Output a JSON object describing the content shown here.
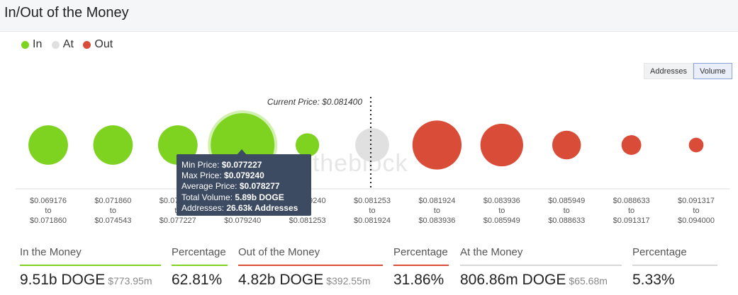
{
  "title": "In/Out of the Money",
  "legend": [
    {
      "label": "In",
      "color": "#7ed321"
    },
    {
      "label": "At",
      "color": "#e0e0e0"
    },
    {
      "label": "Out",
      "color": "#d94c38"
    }
  ],
  "toggle": {
    "addresses": "Addresses",
    "volume": "Volume",
    "active": "Volume"
  },
  "watermark": "intotheblock",
  "chart_data": {
    "type": "scatter",
    "title": "",
    "size_metric": "Volume",
    "current_price_label": "Current Price: $0.081400",
    "current_price": 0.0814,
    "bins": [
      {
        "from": "$0.069176",
        "to": "$0.071860",
        "status": "In",
        "size": 0.62
      },
      {
        "from": "$0.071860",
        "to": "$0.074543",
        "status": "In",
        "size": 0.62
      },
      {
        "from": "$0.074543",
        "to": "$0.077227",
        "status": "In",
        "size": 0.62
      },
      {
        "from": "$0.077227",
        "to": "$0.079240",
        "status": "In",
        "size": 1.0
      },
      {
        "from": "$0.079240",
        "to": "$0.081253",
        "status": "In",
        "size": 0.37
      },
      {
        "from": "$0.081253",
        "to": "$0.081924",
        "status": "At",
        "size": 0.53
      },
      {
        "from": "$0.081924",
        "to": "$0.083936",
        "status": "Out",
        "size": 0.77
      },
      {
        "from": "$0.083936",
        "to": "$0.085949",
        "status": "Out",
        "size": 0.67
      },
      {
        "from": "$0.085949",
        "to": "$0.088633",
        "status": "Out",
        "size": 0.45
      },
      {
        "from": "$0.088633",
        "to": "$0.091317",
        "status": "Out",
        "size": 0.31
      },
      {
        "from": "$0.091317",
        "to": "$0.094000",
        "status": "Out",
        "size": 0.23
      }
    ],
    "highlighted_index": 3
  },
  "tooltip": {
    "min_label": "Min Price: ",
    "min_value": "$0.077227",
    "max_label": "Max Price: ",
    "max_value": "$0.079240",
    "avg_label": "Average Price: ",
    "avg_value": "$0.078277",
    "vol_label": "Total Volume: ",
    "vol_value": "5.89b DOGE",
    "addr_label": "Addresses: ",
    "addr_value": "26.63k Addresses"
  },
  "stats": [
    {
      "label": "In the Money",
      "value": "9.51b DOGE",
      "sub": "$773.95m",
      "color": "#7ed321"
    },
    {
      "label": "Percentage",
      "value": "62.81%",
      "sub": "",
      "color": "#7ed321"
    },
    {
      "label": "Out of the Money",
      "value": "4.82b DOGE",
      "sub": "$392.55m",
      "color": "#d94c38"
    },
    {
      "label": "Percentage",
      "value": "31.86%",
      "sub": "",
      "color": "#d94c38"
    },
    {
      "label": "At the Money",
      "value": "806.86m DOGE",
      "sub": "$65.68m",
      "color": "#d8d8d8"
    },
    {
      "label": "Percentage",
      "value": "5.33%",
      "sub": "",
      "color": "#d8d8d8"
    }
  ]
}
